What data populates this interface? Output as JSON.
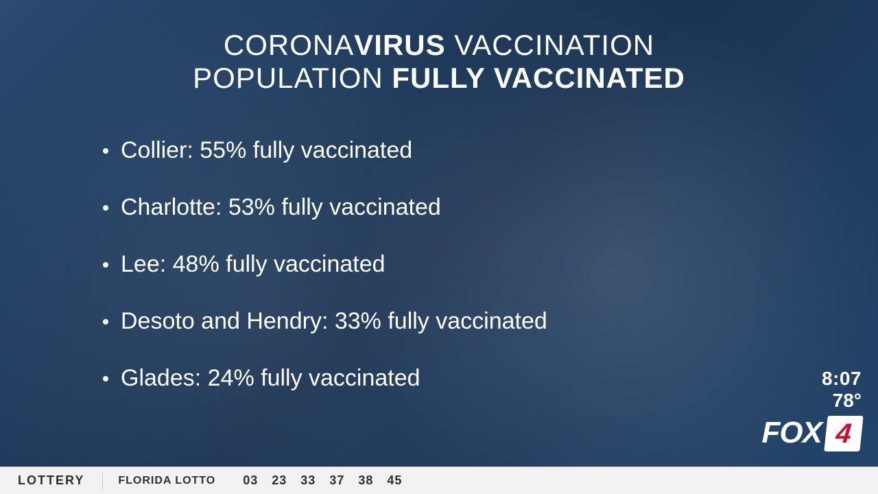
{
  "colors": {
    "background_base": "#1e3a5f",
    "text": "#ffffff",
    "ticker_bg": "#f2f2f2",
    "ticker_text": "#2d2d2d",
    "logo_red": "#c8102e"
  },
  "title": {
    "line1_light": "CORONA",
    "line1_bold": "VIRUS",
    "line1_light2": " VACCINATION",
    "line2_light": "POPULATION ",
    "line2_bold": "FULLY VACCINATED",
    "fontsize": 42
  },
  "bullets": {
    "fontsize": 34,
    "items": [
      {
        "text": "Collier: 55% fully vaccinated"
      },
      {
        "text": "Charlotte: 53% fully vaccinated"
      },
      {
        "text": "Lee: 48% fully vaccinated"
      },
      {
        "text": "Desoto and Hendry: 33% fully vaccinated"
      },
      {
        "text": "Glades: 24% fully vaccinated"
      }
    ]
  },
  "corner": {
    "time": "8:07",
    "temp": "78°",
    "logo_text": "FOX",
    "logo_num": "4"
  },
  "ticker": {
    "label": "LOTTERY",
    "game": "FLORIDA LOTTO",
    "numbers": [
      "03",
      "23",
      "33",
      "37",
      "38",
      "45"
    ]
  }
}
